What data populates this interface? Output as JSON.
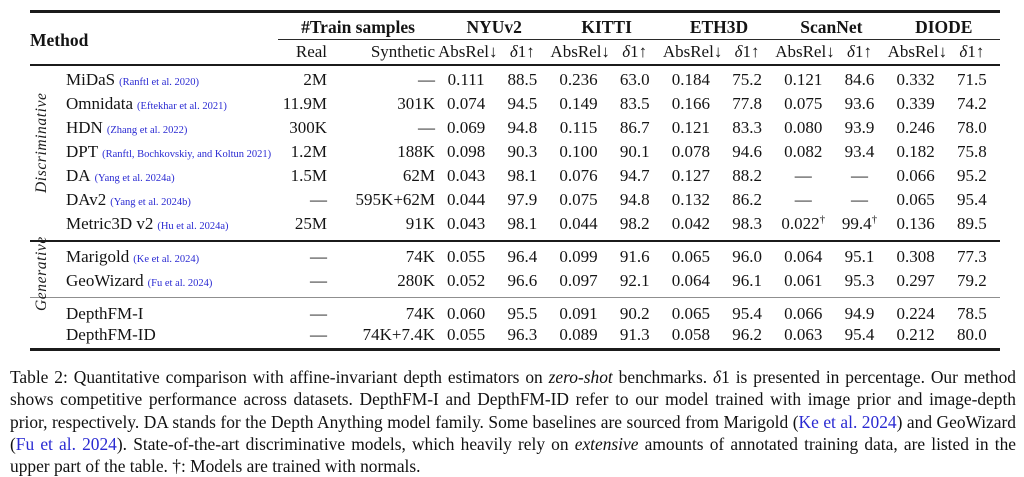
{
  "colors": {
    "link": "#2a2ad2",
    "text": "#141414",
    "rule": "#1b1b1b"
  },
  "table": {
    "header": {
      "method_label": "Method",
      "train_group": "#Train samples",
      "train_sub": [
        "Real",
        "Synthetic"
      ],
      "benchmarks": [
        "NYUv2",
        "KITTI",
        "ETH3D",
        "ScanNet",
        "DIODE"
      ],
      "metric_absrel": "AbsRel↓",
      "metric_delta_symbol": "δ",
      "metric_delta_rest": "1↑"
    },
    "sections": [
      {
        "side_label": "Discriminative",
        "groups": [
          {
            "rows": [
              {
                "method": "MiDaS",
                "citation": "(Ranftl et al. 2020)",
                "values": [
                  "2M",
                  "—",
                  "0.111",
                  "88.5",
                  "0.236",
                  "63.0",
                  "0.184",
                  "75.2",
                  "0.121",
                  "84.6",
                  "0.332",
                  "71.5"
                ]
              },
              {
                "method": "Omnidata",
                "citation": "(Eftekhar et al. 2021)",
                "values": [
                  "11.9M",
                  "301K",
                  "0.074",
                  "94.5",
                  "0.149",
                  "83.5",
                  "0.166",
                  "77.8",
                  "0.075",
                  "93.6",
                  "0.339",
                  "74.2"
                ]
              },
              {
                "method": "HDN",
                "citation": "(Zhang et al. 2022)",
                "values": [
                  "300K",
                  "—",
                  "0.069",
                  "94.8",
                  "0.115",
                  "86.7",
                  "0.121",
                  "83.3",
                  "0.080",
                  "93.9",
                  "0.246",
                  "78.0"
                ]
              },
              {
                "method": "DPT",
                "citation": "(Ranftl, Bochkovskiy, and Koltun 2021)",
                "values": [
                  "1.2M",
                  "188K",
                  "0.098",
                  "90.3",
                  "0.100",
                  "90.1",
                  "0.078",
                  "94.6",
                  "0.082",
                  "93.4",
                  "0.182",
                  "75.8"
                ]
              },
              {
                "method": "DA",
                "citation": "(Yang et al. 2024a)",
                "values": [
                  "1.5M",
                  "62M",
                  "0.043",
                  "98.1",
                  "0.076",
                  "94.7",
                  "0.127",
                  "88.2",
                  "—",
                  "—",
                  "0.066",
                  "95.2"
                ]
              },
              {
                "method": "DAv2",
                "citation": "(Yang et al. 2024b)",
                "values": [
                  "—",
                  "595K+62M",
                  "0.044",
                  "97.9",
                  "0.075",
                  "94.8",
                  "0.132",
                  "86.2",
                  "—",
                  "—",
                  "0.065",
                  "95.4"
                ]
              },
              {
                "method": "Metric3D v2",
                "citation": "(Hu et al. 2024a)",
                "values": [
                  "25M",
                  "91K",
                  "0.043",
                  "98.1",
                  "0.044",
                  "98.2",
                  "0.042",
                  "98.3",
                  "0.022†",
                  "99.4†",
                  "0.136",
                  "89.5"
                ]
              }
            ]
          }
        ]
      },
      {
        "side_label": "Generative",
        "groups": [
          {
            "rows": [
              {
                "method": "Marigold",
                "citation": "(Ke et al. 2024)",
                "values": [
                  "—",
                  "74K",
                  "0.055",
                  "96.4",
                  "0.099",
                  "91.6",
                  "0.065",
                  "96.0",
                  "0.064",
                  "95.1",
                  "0.308",
                  "77.3"
                ]
              },
              {
                "method": "GeoWizard",
                "citation": "(Fu et al. 2024)",
                "values": [
                  "—",
                  "280K",
                  "0.052",
                  "96.6",
                  "0.097",
                  "92.1",
                  "0.064",
                  "96.1",
                  "0.061",
                  "95.3",
                  "0.297",
                  "79.2"
                ]
              }
            ]
          },
          {
            "rows": [
              {
                "method": "DepthFM-I",
                "citation": "",
                "values": [
                  "—",
                  "74K",
                  "0.060",
                  "95.5",
                  "0.091",
                  "90.2",
                  "0.065",
                  "95.4",
                  "0.066",
                  "94.9",
                  "0.224",
                  "78.5"
                ]
              },
              {
                "method": "DepthFM-ID",
                "citation": "",
                "values": [
                  "—",
                  "74K+7.4K",
                  "0.055",
                  "96.3",
                  "0.089",
                  "91.3",
                  "0.058",
                  "96.2",
                  "0.063",
                  "95.4",
                  "0.212",
                  "80.0"
                ]
              }
            ]
          }
        ]
      }
    ]
  },
  "caption": {
    "segments": [
      {
        "text": "Table 2: Quantitative comparison with affine-invariant depth estimators on ",
        "style": "normal"
      },
      {
        "text": "zero-shot",
        "style": "italic"
      },
      {
        "text": " benchmarks. ",
        "style": "normal"
      },
      {
        "text": "δ",
        "style": "italic"
      },
      {
        "text": "1 is presented in percentage. Our method shows competitive performance across datasets. DepthFM-I and DepthFM-ID refer to our model trained with image prior and image-depth prior, respectively. DA stands for the Depth Anything model family. Some baselines are sourced from Marigold (",
        "style": "normal"
      },
      {
        "text": "Ke et al. 2024",
        "style": "link"
      },
      {
        "text": ") and GeoWizard (",
        "style": "normal"
      },
      {
        "text": "Fu et al. 2024",
        "style": "link"
      },
      {
        "text": "). State-of-the-art discriminative models, which heavily rely on ",
        "style": "normal"
      },
      {
        "text": "extensive",
        "style": "italic"
      },
      {
        "text": " amounts of annotated training data, are listed in the upper part of the table. †: Models are trained with normals.",
        "style": "normal"
      }
    ]
  }
}
